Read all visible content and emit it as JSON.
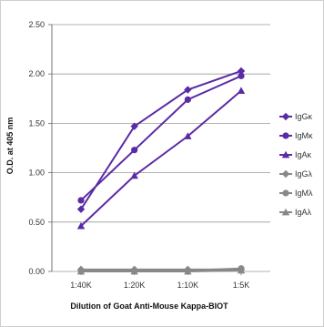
{
  "chart_data": {
    "type": "line",
    "xlabel": "Dilution of Goat Anti-Mouse Kappa-BIOT",
    "ylabel": "O.D. at 405 nm",
    "categories": [
      "1:40K",
      "1:20K",
      "1:10K",
      "1:5K"
    ],
    "yticks": [
      "0.00",
      "0.50",
      "1.00",
      "1.50",
      "2.00",
      "2.50"
    ],
    "ylim": [
      0,
      2.5
    ],
    "grid": true,
    "legend_position": "right",
    "series": [
      {
        "name": "IgGκ",
        "values": [
          0.63,
          1.47,
          1.84,
          2.03
        ],
        "color": "#5b2aa5",
        "marker": "diamond"
      },
      {
        "name": "IgMκ",
        "values": [
          0.72,
          1.23,
          1.74,
          1.98
        ],
        "color": "#5b2aa5",
        "marker": "circle"
      },
      {
        "name": "IgAκ",
        "values": [
          0.46,
          0.97,
          1.37,
          1.83
        ],
        "color": "#5b2aa5",
        "marker": "triangle"
      },
      {
        "name": "IgGλ",
        "values": [
          0.02,
          0.02,
          0.02,
          0.02
        ],
        "color": "#888888",
        "marker": "diamond"
      },
      {
        "name": "IgMλ",
        "values": [
          0.01,
          0.01,
          0.01,
          0.03
        ],
        "color": "#888888",
        "marker": "circle"
      },
      {
        "name": "IgAλ",
        "values": [
          0.0,
          0.0,
          0.0,
          0.01
        ],
        "color": "#888888",
        "marker": "triangle"
      }
    ]
  }
}
